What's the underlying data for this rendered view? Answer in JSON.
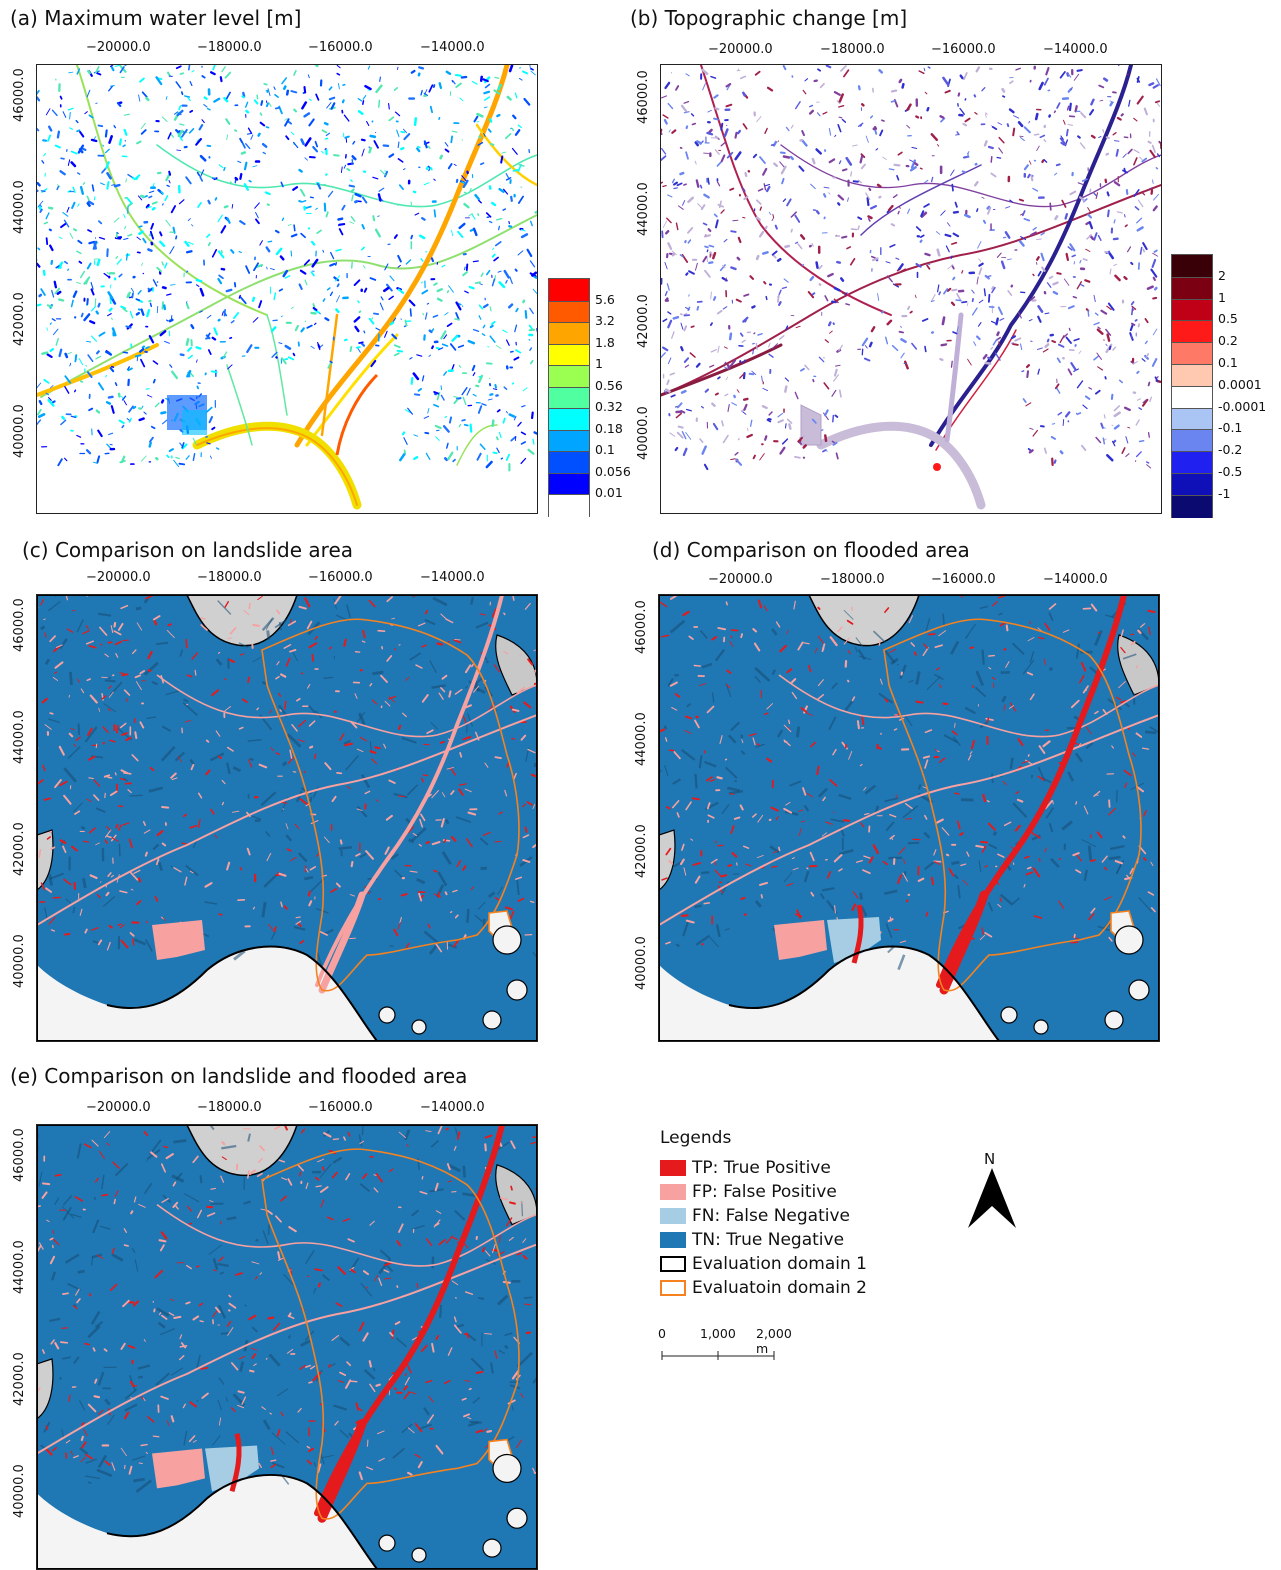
{
  "panels": {
    "a": {
      "title": "(a) Maximum water level  [m]"
    },
    "b": {
      "title": "(b) Topographic change [m]"
    },
    "c": {
      "title": "(c) Comparison on landslide area"
    },
    "d": {
      "title": "(d) Comparison on flooded area"
    },
    "e": {
      "title": "(e) Comparison on landslide and flooded area"
    }
  },
  "axes": {
    "x_ticks": [
      "−20000.0",
      "−18000.0",
      "−16000.0",
      "−14000.0"
    ],
    "y_ticks": [
      "46000.0",
      "44000.0",
      "42000.0",
      "40000.0"
    ]
  },
  "colorbar_water": {
    "labels": [
      "5.6",
      "3.2",
      "1.8",
      "1",
      "0.56",
      "0.32",
      "0.18",
      "0.1",
      "0.056",
      "0.01"
    ],
    "colors": [
      "#ff0000",
      "#ff5a00",
      "#ffa500",
      "#ffff00",
      "#9aff50",
      "#50ffa0",
      "#00ffff",
      "#00a5ff",
      "#0050ff",
      "#0000ff",
      "#ffffff"
    ]
  },
  "colorbar_topo": {
    "labels": [
      "2",
      "1",
      "0.5",
      "0.2",
      "0.1",
      "0.0001",
      "-0.0001",
      "-0.1",
      "-0.2",
      "-0.5",
      "-1"
    ],
    "colors": [
      "#3a0008",
      "#7a0012",
      "#c00016",
      "#ff1a1a",
      "#ff7a66",
      "#ffc8b0",
      "#ffffff",
      "#aac4f4",
      "#6a84f0",
      "#2020f0",
      "#1010b8",
      "#0a0a70"
    ]
  },
  "legend": {
    "title": "Legends",
    "items": [
      {
        "label": "TP: True Positive",
        "color": "#e41a1c",
        "type": "fill"
      },
      {
        "label": "FP: False Positive",
        "color": "#f7a1a1",
        "type": "fill"
      },
      {
        "label": "FN: False Negative",
        "color": "#a6cde3",
        "type": "fill"
      },
      {
        "label": "TN: True Negative",
        "color": "#1f78b4",
        "type": "fill"
      },
      {
        "label": "Evaluation domain 1",
        "color": "#000000",
        "type": "outline"
      },
      {
        "label": "Evaluatoin domain 2",
        "color": "#f58220",
        "type": "outline"
      }
    ]
  },
  "scale_bar": {
    "labels": [
      "0",
      "1,000",
      "2,000 m"
    ]
  },
  "north_arrow": {
    "label": "N"
  }
}
